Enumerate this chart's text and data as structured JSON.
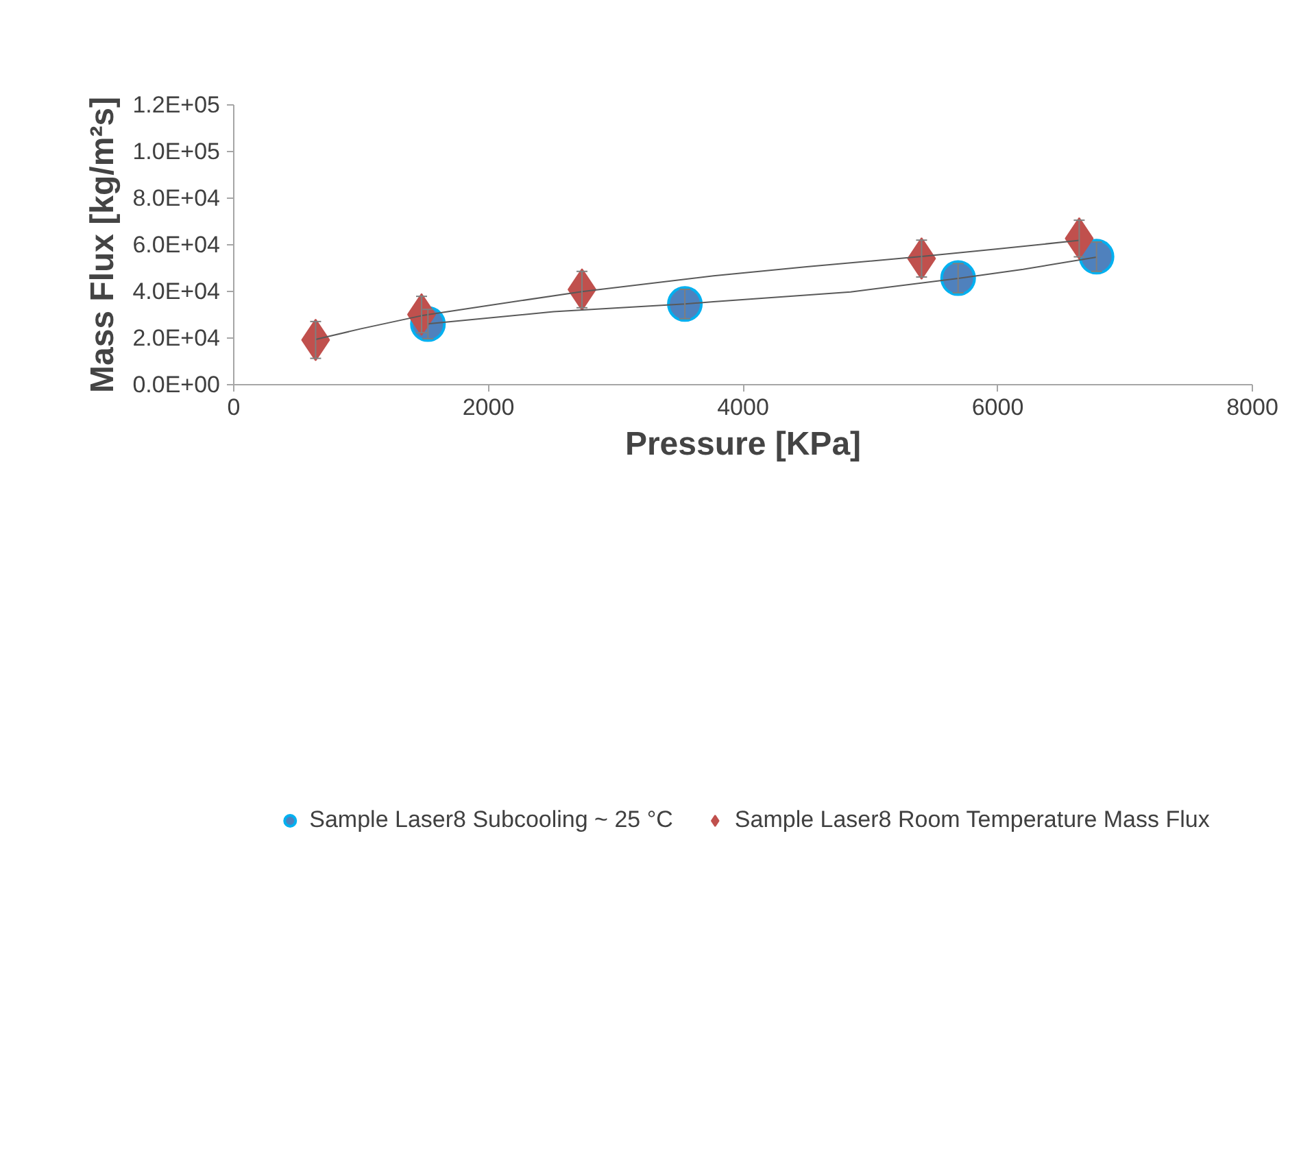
{
  "chart_data": {
    "type": "scatter",
    "xlabel": "Pressure [KPa]",
    "ylabel": "Mass Flux [kg/m²s]",
    "xlim": [
      0,
      8000
    ],
    "xticks": [
      0,
      2000,
      4000,
      6000,
      8000
    ],
    "ylim": [
      0,
      120000
    ],
    "yticks": [
      {
        "value": 0,
        "label": "0.0E+00"
      },
      {
        "value": 20000,
        "label": "2.0E+04"
      },
      {
        "value": 40000,
        "label": "4.0E+04"
      },
      {
        "value": 60000,
        "label": "6.0E+04"
      },
      {
        "value": 80000,
        "label": "8.0E+04"
      },
      {
        "value": 100000,
        "label": "1.0E+05"
      },
      {
        "value": 120000,
        "label": "1.2E+05"
      }
    ],
    "grid": false,
    "legend": "bottom",
    "series": [
      {
        "name": "Sample Laser8 Subcooling ~ 25 °C",
        "color": "#4f81bd",
        "marker": "circle",
        "x": [
          1525,
          3543,
          5689,
          6776
        ],
        "values": [
          26000,
          34600,
          45700,
          54900
        ],
        "errors": [
          6300,
          6300,
          6250,
          6300
        ]
      },
      {
        "name": "Sample Laser8 Room Temperature Mass Flux",
        "color": "#c0504d",
        "marker": "diamond",
        "x": [
          643,
          1475,
          2735,
          5402,
          6640
        ],
        "values": [
          19200,
          30100,
          40800,
          54100,
          62700
        ],
        "errors": [
          7900,
          7800,
          7800,
          7900,
          7850
        ]
      },
      {
        "type": "line",
        "color": "#595959",
        "x": [
          1525,
          2512,
          3543,
          3768,
          4845,
          5689,
          6200,
          6776
        ],
        "values": [
          26100,
          31300,
          34600,
          35600,
          39800,
          45600,
          49500,
          54700
        ]
      },
      {
        "type": "line",
        "color": "#595959",
        "x": [
          643,
          1000,
          1475,
          2000,
          2735,
          3768,
          4500,
          5402,
          6000,
          6640
        ],
        "values": [
          19400,
          24000,
          29600,
          34000,
          39900,
          46700,
          50600,
          55000,
          58200,
          61900
        ]
      }
    ]
  }
}
